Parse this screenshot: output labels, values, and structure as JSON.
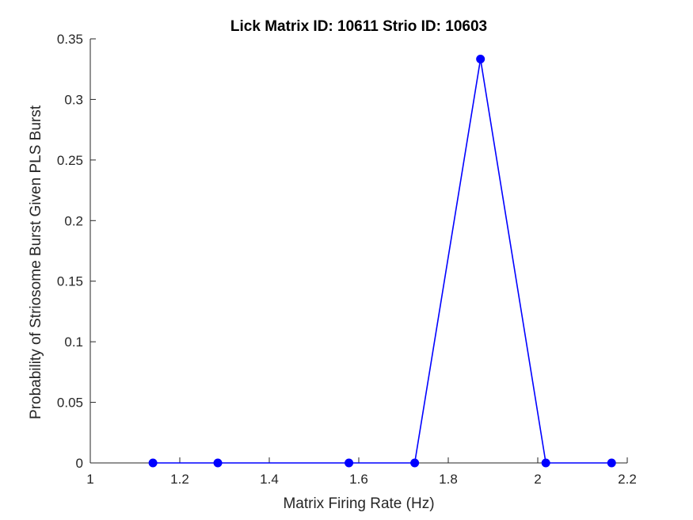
{
  "chart_data": {
    "type": "line",
    "title": "Lick Matrix ID: 10611 Strio ID: 10603",
    "xlabel": "Matrix Firing Rate (Hz)",
    "ylabel": "Probability of Striosome Burst Given PLS Burst",
    "xlim": [
      1,
      2.2
    ],
    "ylim": [
      0,
      0.35
    ],
    "xticks": [
      "1",
      "1.2",
      "1.4",
      "1.6",
      "1.8",
      "2",
      "2.2"
    ],
    "yticks": [
      "0",
      "0.05",
      "0.1",
      "0.15",
      "0.2",
      "0.25",
      "0.3",
      "0.35"
    ],
    "grid": false,
    "series": [
      {
        "color": "#0000ff",
        "marker": "circle",
        "x": [
          1.14,
          1.285,
          1.578,
          1.725,
          1.872,
          2.018,
          2.165
        ],
        "y": [
          0,
          0,
          0,
          0,
          0.3333,
          0,
          0
        ]
      }
    ]
  }
}
